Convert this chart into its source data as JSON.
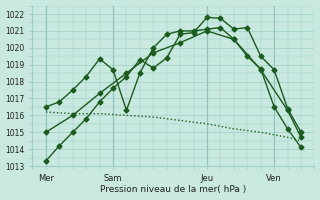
{
  "xlabel": "Pression niveau de la mer( hPa )",
  "ylim": [
    1013,
    1022.5
  ],
  "yticks": [
    1013,
    1014,
    1015,
    1016,
    1017,
    1018,
    1019,
    1020,
    1021,
    1022
  ],
  "xlim": [
    0,
    10.5
  ],
  "bg_color": "#c8e8e0",
  "grid_color": "#9ecfc8",
  "line_color": "#1a5c1a",
  "day_labels": [
    "Mer",
    "Sam",
    "Jeu",
    "Ven"
  ],
  "day_positions": [
    0.5,
    3.0,
    6.5,
    9.0
  ],
  "vline_positions": [
    0.5,
    3.0,
    6.5,
    9.0
  ],
  "lines": [
    {
      "x": [
        0.5,
        1.0,
        1.5,
        2.0,
        2.5,
        3.0,
        3.5,
        4.0,
        4.5,
        5.0,
        5.5,
        6.0,
        6.5,
        7.0,
        7.5,
        8.0,
        8.5,
        9.0,
        9.5,
        10.0
      ],
      "y": [
        1013.3,
        1014.2,
        1015.0,
        1015.8,
        1016.8,
        1017.6,
        1018.3,
        1019.3,
        1018.8,
        1019.4,
        1020.8,
        1020.9,
        1021.8,
        1021.75,
        1021.1,
        1021.2,
        1019.5,
        1018.7,
        1016.4,
        1015.0
      ],
      "style": "-",
      "marker": "D",
      "markersize": 2.5,
      "lw": 1.0
    },
    {
      "x": [
        0.5,
        1.0,
        1.5,
        2.0,
        2.5,
        3.0,
        3.5,
        4.0,
        4.5,
        5.0,
        5.5,
        6.0,
        6.5,
        7.0,
        7.5,
        8.0,
        8.5,
        9.0,
        9.5,
        10.0
      ],
      "y": [
        1016.5,
        1016.8,
        1017.5,
        1018.3,
        1019.35,
        1018.7,
        1016.3,
        1018.5,
        1020.0,
        1020.8,
        1021.0,
        1021.0,
        1021.1,
        1021.2,
        1020.5,
        1019.5,
        1018.75,
        1016.5,
        1015.2,
        1014.1
      ],
      "style": "-",
      "marker": "D",
      "markersize": 2.5,
      "lw": 1.0
    },
    {
      "x": [
        0.5,
        1.5,
        2.5,
        3.5,
        4.5,
        5.5,
        6.5,
        7.5,
        8.5,
        9.5,
        10.0
      ],
      "y": [
        1015.0,
        1016.0,
        1017.3,
        1018.5,
        1019.7,
        1020.3,
        1021.0,
        1020.5,
        1018.7,
        1016.3,
        1014.7
      ],
      "style": "-",
      "marker": "D",
      "markersize": 2.5,
      "lw": 1.0
    },
    {
      "x": [
        0.5,
        1.5,
        2.5,
        3.5,
        4.5,
        5.5,
        6.5,
        7.5,
        8.5,
        9.5,
        10.0
      ],
      "y": [
        1016.2,
        1016.1,
        1016.1,
        1016.0,
        1015.9,
        1015.7,
        1015.5,
        1015.2,
        1015.0,
        1014.7,
        1014.5
      ],
      "style": ":",
      "marker": null,
      "markersize": 0,
      "lw": 1.0
    }
  ]
}
